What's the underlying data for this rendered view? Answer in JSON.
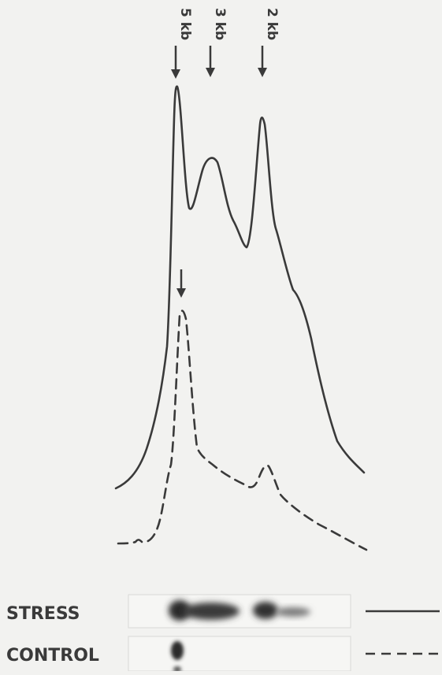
{
  "chart_data": {
    "type": "line",
    "title": "",
    "xlabel": "",
    "ylabel": "",
    "markers": [
      {
        "label": "5 kb"
      },
      {
        "label": "3 kb"
      },
      {
        "label": "2 kb"
      }
    ],
    "series": [
      {
        "name": "STRESS",
        "line_style": "solid",
        "color": "#3a3a3a",
        "peaks": [
          "5 kb",
          "3 kb",
          "2 kb"
        ]
      },
      {
        "name": "CONTROL",
        "line_style": "dashed",
        "color": "#3a3a3a",
        "peaks": [
          "5 kb",
          "2 kb"
        ]
      }
    ],
    "grid": false
  },
  "legend": {
    "stress_label": "STRESS",
    "control_label": "CONTROL"
  },
  "colors": {
    "background": "#f2f2f0",
    "ink": "#3a3a3a",
    "band": "#2e2e2e"
  }
}
